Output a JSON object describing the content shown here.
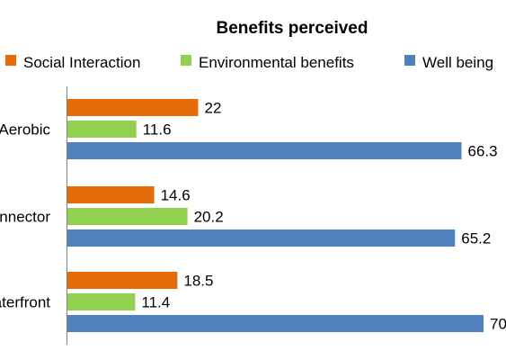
{
  "chart_data": {
    "type": "bar",
    "orientation": "horizontal",
    "title": "Benefits perceived",
    "categories": [
      "Aerobic",
      "Connector",
      "Waterfront"
    ],
    "series": [
      {
        "name": "Social Interaction",
        "color": "#E46C0A",
        "values": [
          22,
          14.6,
          18.5
        ]
      },
      {
        "name": "Environmental benefits",
        "color": "#92D050",
        "values": [
          11.6,
          20.2,
          11.4
        ]
      },
      {
        "name": "Well being",
        "color": "#4F81BD",
        "values": [
          66.3,
          65.2,
          70
        ]
      }
    ],
    "data_labels": [
      [
        "22",
        "14.6",
        "18.5"
      ],
      [
        "11.6",
        "20.2",
        "11.4"
      ],
      [
        "66.3",
        "65.2",
        "70"
      ]
    ],
    "legend_position": "top",
    "xlim": [
      0,
      70
    ],
    "gridlines": false
  }
}
